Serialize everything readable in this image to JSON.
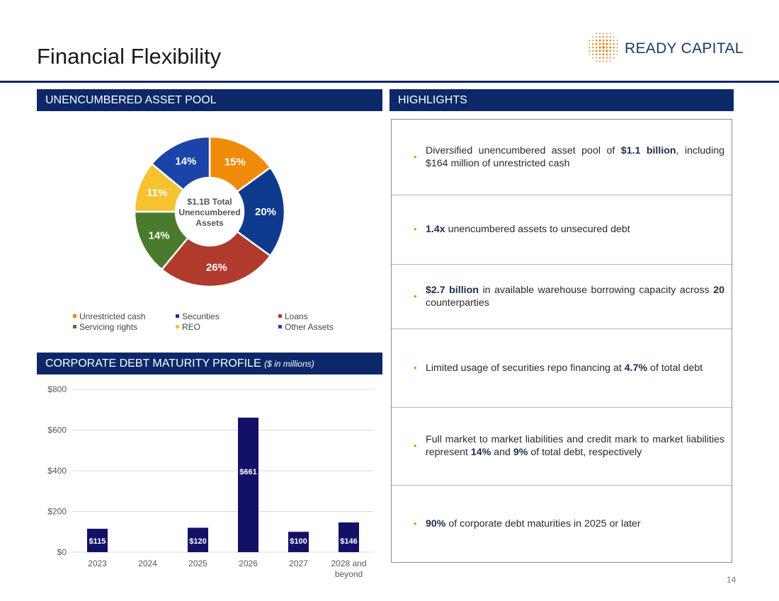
{
  "page": {
    "title": "Financial Flexibility",
    "page_number": "14"
  },
  "logo": {
    "text": "READY CAPITAL",
    "mark": "ready-capital-dot-grid"
  },
  "colors": {
    "navy": "#0c2869",
    "orange": "#f08a0b",
    "blue": "#0d3a8c",
    "red": "#b03a2b",
    "green": "#4a7a2c",
    "yellow": "#f7c230",
    "royal": "#1b44a8",
    "bar": "#131166"
  },
  "sections": {
    "pool": "UNENCUMBERED ASSET POOL",
    "highlights": "HIGHLIGHTS",
    "debt": "CORPORATE DEBT MATURITY PROFILE",
    "debt_sub": "($ in millions)"
  },
  "highlights": [
    {
      "parts": [
        {
          "t": "Diversified unencumbered asset pool of "
        },
        {
          "t": "$1.1 billion",
          "b": true
        },
        {
          "t": ", including $164 million of unrestricted cash"
        }
      ]
    },
    {
      "parts": [
        {
          "t": "1.4x",
          "b": true
        },
        {
          "t": " unencumbered assets to unsecured debt"
        }
      ]
    },
    {
      "parts": [
        {
          "t": "$2.7 billion",
          "b": true
        },
        {
          "t": " in available warehouse borrowing capacity across "
        },
        {
          "t": "20",
          "b": true
        },
        {
          "t": " counterparties"
        }
      ]
    },
    {
      "parts": [
        {
          "t": "Limited usage of securities repo financing at "
        },
        {
          "t": "4.7%",
          "b": true
        },
        {
          "t": " of total debt"
        }
      ]
    },
    {
      "parts": [
        {
          "t": "Full market to market liabilities and credit mark to market liabilities represent "
        },
        {
          "t": "14%",
          "b": true
        },
        {
          "t": " and "
        },
        {
          "t": "9%",
          "b": true
        },
        {
          "t": " of total debt, respectively"
        }
      ]
    },
    {
      "parts": [
        {
          "t": "90%",
          "b": true
        },
        {
          "t": " of corporate debt maturities in 2025 or later"
        }
      ]
    }
  ],
  "chart_data": [
    {
      "type": "pie",
      "donut": true,
      "center_label": [
        "$1.1B Total",
        "Unencumbered",
        "Assets"
      ],
      "slices": [
        {
          "name": "Unrestricted cash",
          "value": 15,
          "label": "15%",
          "color": "#f08a0b"
        },
        {
          "name": "Securities",
          "value": 20,
          "label": "20%",
          "color": "#0d3a8c"
        },
        {
          "name": "Loans",
          "value": 26,
          "label": "26%",
          "color": "#b03a2b"
        },
        {
          "name": "Servicing rights",
          "value": 14,
          "label": "14%",
          "color": "#4a7a2c"
        },
        {
          "name": "REO",
          "value": 11,
          "label": "11%",
          "color": "#f7c230"
        },
        {
          "name": "Other Assets",
          "value": 14,
          "label": "14%",
          "color": "#1b44a8"
        }
      ],
      "legend_order": [
        "Unrestricted cash",
        "Securities",
        "Loans",
        "Servicing rights",
        "REO",
        "Other Assets"
      ],
      "legend_placement": "bottom"
    },
    {
      "type": "bar",
      "categories": [
        "2023",
        "2024",
        "2025",
        "2026",
        "2027",
        "2028 and beyond"
      ],
      "values": [
        115,
        null,
        120,
        661,
        100,
        146
      ],
      "data_labels": [
        "$115",
        "",
        "$120",
        "$661",
        "$100",
        "$146"
      ],
      "ylim": [
        0,
        800
      ],
      "yticks": [
        0,
        200,
        400,
        600,
        800
      ],
      "ytick_labels": [
        "$0",
        "$200",
        "$400",
        "$600",
        "$800"
      ],
      "grid": true,
      "color": "#131166"
    }
  ]
}
